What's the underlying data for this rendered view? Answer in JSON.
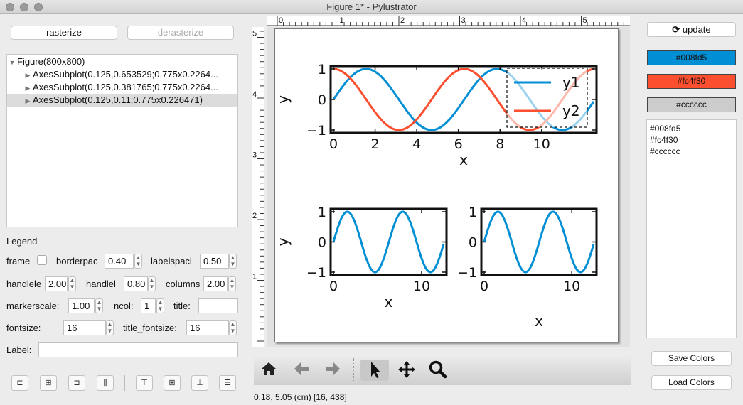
{
  "window": {
    "title": "Figure 1* - Pylustrator"
  },
  "left_panel": {
    "rasterize": "rasterize",
    "derasterize": "derasterize",
    "tree": [
      {
        "label": "Figure(800x800)",
        "expanded": true
      },
      {
        "label": "AxesSubplot(0.125,0.653529;0.775x0.2264..."
      },
      {
        "label": "AxesSubplot(0.125,0.381765;0.775x0.2264..."
      },
      {
        "label": "AxesSubplot(0.125,0.11;0.775x0.226471)",
        "selected": true
      }
    ],
    "legend_heading": "Legend",
    "frame_label": "frame",
    "borderpad_label": "borderpac",
    "borderpad_value": "0.40",
    "labelspacing_label": "labelspaci",
    "labelspacing_value": "0.50",
    "handlelength_label": "handlele",
    "handlelength_value": "2.00",
    "handleheight_label": "handlel",
    "handleheight_value": "0.80",
    "columnspacing_label": "columns",
    "columnspacing_value": "2.00",
    "markerscale_label": "markerscale:",
    "markerscale_value": "1.00",
    "ncol_label": "ncol:",
    "ncol_value": "1",
    "title_label": "title:",
    "title_value": "",
    "fontsize_label": "fontsize:",
    "fontsize_value": "16",
    "title_fontsize_label": "title_fontsize:",
    "title_fontsize_value": "16",
    "label_label": "Label:",
    "label_value": ""
  },
  "rulers": {
    "top": [
      "0",
      "1",
      "2",
      "3",
      "4",
      "5"
    ],
    "left": [
      "5",
      "4",
      "3",
      "2",
      "1"
    ]
  },
  "toolbar": {
    "home": "home-icon",
    "back": "arrow-left-icon",
    "forward": "arrow-right-icon",
    "select": "pointer-icon",
    "pan": "move-icon",
    "zoom": "magnifier-icon"
  },
  "status": {
    "text": "0.18, 5.05 (cm) [16, 438]"
  },
  "right_panel": {
    "update": "update",
    "colors": [
      {
        "label": "#008fd5",
        "hex": "#008fd5"
      },
      {
        "label": "#fc4f30",
        "hex": "#fc4f30"
      },
      {
        "label": "#cccccc",
        "hex": "#cccccc"
      }
    ],
    "color_list": [
      "#008fd5",
      "#fc4f30",
      "#cccccc"
    ],
    "save_colors": "Save Colors",
    "load_colors": "Load Colors"
  },
  "chart_data": [
    {
      "type": "line",
      "x_range": [
        0,
        12.5
      ],
      "ylim": [
        -1,
        1
      ],
      "xlabel": "x",
      "ylabel": "y",
      "xticks": [
        "0",
        "2",
        "4",
        "6",
        "8",
        "10"
      ],
      "yticks": [
        "1",
        "0",
        "−1"
      ],
      "series": [
        {
          "name": "y1",
          "function": "sin(x)",
          "color": "#008fd5"
        },
        {
          "name": "y2",
          "function": "cos(x)",
          "color": "#fc4f30"
        }
      ],
      "legend": "top-right"
    },
    {
      "type": "line",
      "x_range": [
        0,
        12.5
      ],
      "ylim": [
        -1,
        1
      ],
      "xlabel": "x",
      "ylabel": "y",
      "xticks": [
        "0",
        "10"
      ],
      "yticks": [
        "1",
        "0",
        "−1"
      ],
      "series": [
        {
          "function": "sin(x)",
          "color": "#008fd5"
        }
      ]
    },
    {
      "type": "line",
      "x_range": [
        0,
        12.5
      ],
      "ylim": [
        -1,
        1
      ],
      "xlabel": "x",
      "xticks": [
        "0",
        "10"
      ],
      "yticks": [
        "1",
        "0",
        "−1"
      ],
      "series": [
        {
          "function": "sin(x)",
          "color": "#008fd5"
        }
      ]
    }
  ]
}
